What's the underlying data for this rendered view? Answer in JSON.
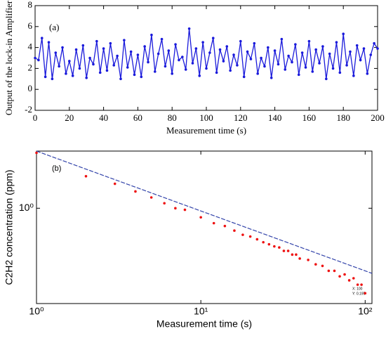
{
  "chart_data": [
    {
      "type": "line",
      "annotation": "(a)",
      "xlabel": "Measurement time (s)",
      "ylabel": "Output of the lock-in Amplifier",
      "xlim": [
        0,
        200
      ],
      "ylim": [
        -2,
        8
      ],
      "xticks": [
        0,
        20,
        40,
        60,
        80,
        100,
        120,
        140,
        160,
        180,
        200
      ],
      "yticks": [
        -2,
        0,
        2,
        4,
        6,
        8
      ],
      "x": [
        0,
        2,
        4,
        6,
        8,
        10,
        12,
        14,
        16,
        18,
        20,
        22,
        24,
        26,
        28,
        30,
        32,
        34,
        36,
        38,
        40,
        42,
        44,
        46,
        48,
        50,
        52,
        54,
        56,
        58,
        60,
        62,
        64,
        66,
        68,
        70,
        72,
        74,
        76,
        78,
        80,
        82,
        84,
        86,
        88,
        90,
        92,
        94,
        96,
        98,
        100,
        102,
        104,
        106,
        108,
        110,
        112,
        114,
        116,
        118,
        120,
        122,
        124,
        126,
        128,
        130,
        132,
        134,
        136,
        138,
        140,
        142,
        144,
        146,
        148,
        150,
        152,
        154,
        156,
        158,
        160,
        162,
        164,
        166,
        168,
        170,
        172,
        174,
        176,
        178,
        180,
        182,
        184,
        186,
        188,
        190,
        192,
        194,
        196,
        198,
        200
      ],
      "series": [
        {
          "color": "#1a1adb",
          "values": [
            3.0,
            2.8,
            4.9,
            1.2,
            4.5,
            1.0,
            3.5,
            2.2,
            4.0,
            1.5,
            2.7,
            1.3,
            3.8,
            2.0,
            4.2,
            1.1,
            3.0,
            2.4,
            4.6,
            1.6,
            3.9,
            1.8,
            4.4,
            2.3,
            3.2,
            1.0,
            4.7,
            2.1,
            3.6,
            1.4,
            3.3,
            1.2,
            4.1,
            2.6,
            5.2,
            1.7,
            3.4,
            4.8,
            2.2,
            3.7,
            1.5,
            4.3,
            2.8,
            3.1,
            1.9,
            5.8,
            2.5,
            3.9,
            1.3,
            4.5,
            2.0,
            3.5,
            4.9,
            1.6,
            3.8,
            2.7,
            4.1,
            1.8,
            3.3,
            2.3,
            4.6,
            1.2,
            3.6,
            2.9,
            4.4,
            1.5,
            3.0,
            2.2,
            4.0,
            1.1,
            3.7,
            2.4,
            4.8,
            1.9,
            3.2,
            2.6,
            4.3,
            1.4,
            3.5,
            2.1,
            4.6,
            1.7,
            3.8,
            2.5,
            4.1,
            1.0,
            3.4,
            2.0,
            4.5,
            1.6,
            5.3,
            2.3,
            3.6,
            1.3,
            4.2,
            2.8,
            3.9,
            1.5,
            3.3,
            4.4,
            3.9
          ]
        }
      ]
    },
    {
      "type": "scatter",
      "annotation": "(b)",
      "log": true,
      "xlabel": "Measurement time (s)",
      "ylabel": "C2H2 concentration (ppm)",
      "xlim": [
        1,
        110
      ],
      "ylim": [
        0.16,
        3.0
      ],
      "xticks": [
        {
          "value": 1,
          "label": "10⁰"
        },
        {
          "value": 10,
          "label": "10¹"
        },
        {
          "value": 100,
          "label": "10²"
        }
      ],
      "yticks": [
        {
          "value": 1,
          "label": "10⁰"
        }
      ],
      "x": [
        1,
        2,
        3,
        4,
        5,
        6,
        7,
        8,
        10,
        12,
        14,
        16,
        18,
        20,
        22,
        24,
        26,
        28,
        30,
        32,
        34,
        36,
        38,
        40,
        45,
        50,
        55,
        60,
        65,
        70,
        75,
        80,
        85,
        90,
        95,
        100
      ],
      "series": [
        {
          "color": "#ee1111",
          "values": [
            2.9,
            1.85,
            1.6,
            1.38,
            1.23,
            1.1,
            1.0,
            0.97,
            0.84,
            0.75,
            0.71,
            0.65,
            0.6,
            0.58,
            0.55,
            0.52,
            0.5,
            0.48,
            0.47,
            0.44,
            0.44,
            0.41,
            0.41,
            0.38,
            0.37,
            0.34,
            0.33,
            0.3,
            0.3,
            0.27,
            0.28,
            0.25,
            0.26,
            0.23,
            0.23,
            0.195
          ]
        }
      ],
      "fit_line": {
        "color": "#3344aa",
        "x": [
          1,
          110
        ],
        "values": [
          3.0,
          0.286
        ]
      },
      "datatip": [
        "X: 100",
        "Y: 0.195"
      ]
    }
  ]
}
